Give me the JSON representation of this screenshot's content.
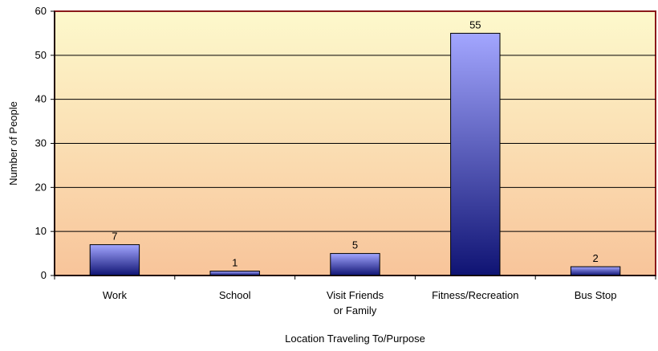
{
  "chart_data": {
    "type": "bar",
    "categories": [
      [
        "Work"
      ],
      [
        "School"
      ],
      [
        "Visit Friends",
        "or Family"
      ],
      [
        "Fitness/Recreation"
      ],
      [
        "Bus Stop"
      ]
    ],
    "values": [
      7,
      1,
      5,
      55,
      2
    ],
    "data_labels": [
      "7",
      "1",
      "5",
      "55",
      "2"
    ],
    "title": "",
    "xlabel": "Location Traveling To/Purpose",
    "ylabel": "Number of People",
    "ylim": [
      0,
      60
    ],
    "yticks": [
      "0",
      "10",
      "20",
      "30",
      "40",
      "50",
      "60"
    ],
    "grid": true,
    "legend": "none",
    "colors": {
      "plot_bg_top": "#fdf9cc",
      "plot_bg_bottom": "#f8c49a",
      "plot_border": "#8b1a1a",
      "bar_top": "#a3a6ff",
      "bar_bottom": "#0f1373",
      "bar_stroke": "#000000"
    }
  }
}
